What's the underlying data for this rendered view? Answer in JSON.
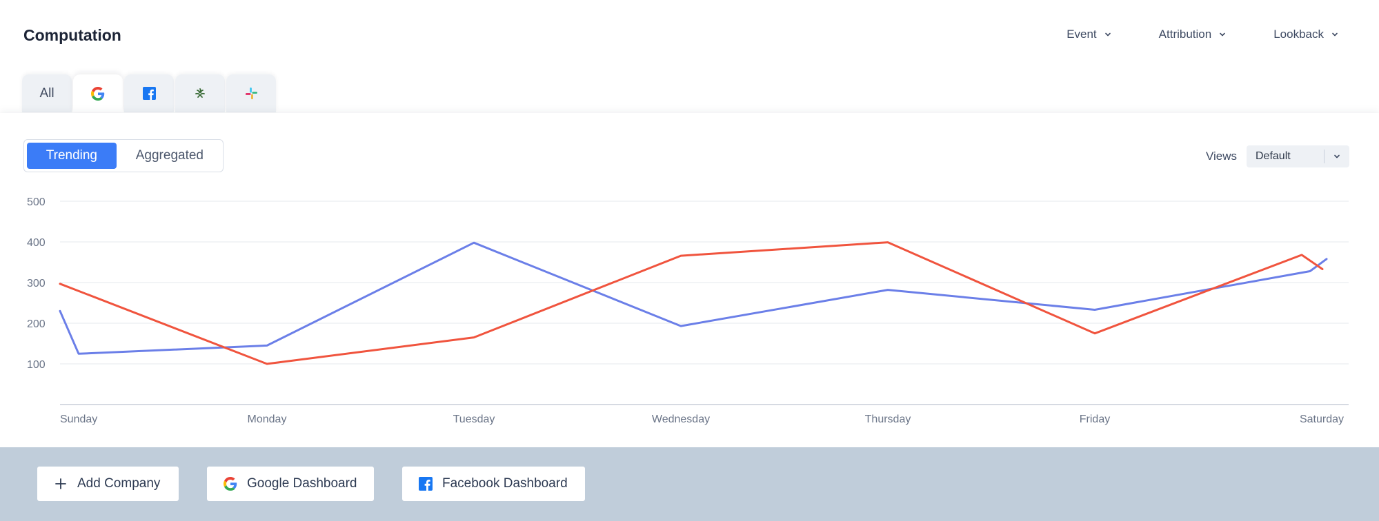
{
  "header": {
    "title": "Computation"
  },
  "filters": [
    {
      "label": "Event"
    },
    {
      "label": "Attribution"
    },
    {
      "label": "Lookback"
    }
  ],
  "tabs": [
    {
      "label": "All",
      "icon": ""
    },
    {
      "label": "",
      "icon": "google-icon"
    },
    {
      "label": "",
      "icon": "facebook-icon"
    },
    {
      "label": "",
      "icon": "razer-icon"
    },
    {
      "label": "",
      "icon": "slack-icon"
    }
  ],
  "toggle": {
    "trending_label": "Trending",
    "aggregated_label": "Aggregated",
    "active": "Trending"
  },
  "views": {
    "label": "Views",
    "selected": "Default"
  },
  "chart_data": {
    "type": "line",
    "categories": [
      "Sunday",
      "Monday",
      "Tuesday",
      "Wednesday",
      "Thursday",
      "Friday",
      "Saturday"
    ],
    "yticks": [
      100,
      200,
      300,
      400,
      500
    ],
    "ylim": [
      0,
      500
    ],
    "grid": true,
    "series": [
      {
        "color": "#6b7fe8",
        "points": [
          {
            "x": 0,
            "y": 230
          },
          {
            "x": 0.09,
            "y": 125
          },
          {
            "x": 1,
            "y": 145
          },
          {
            "x": 2,
            "y": 398
          },
          {
            "x": 3,
            "y": 193
          },
          {
            "x": 4,
            "y": 282
          },
          {
            "x": 5,
            "y": 233
          },
          {
            "x": 6.04,
            "y": 328
          },
          {
            "x": 6.12,
            "y": 358
          }
        ]
      },
      {
        "color": "#f0543e",
        "points": [
          {
            "x": 0,
            "y": 297
          },
          {
            "x": 1,
            "y": 100
          },
          {
            "x": 2,
            "y": 165
          },
          {
            "x": 3,
            "y": 366
          },
          {
            "x": 4,
            "y": 399
          },
          {
            "x": 5,
            "y": 175
          },
          {
            "x": 6,
            "y": 368
          },
          {
            "x": 6.1,
            "y": 333
          }
        ]
      }
    ]
  },
  "actions": [
    {
      "label": "Add Company",
      "icon": "plus-icon"
    },
    {
      "label": "Google Dashboard",
      "icon": "google-icon"
    },
    {
      "label": "Facebook Dashboard",
      "icon": "facebook-icon"
    }
  ]
}
